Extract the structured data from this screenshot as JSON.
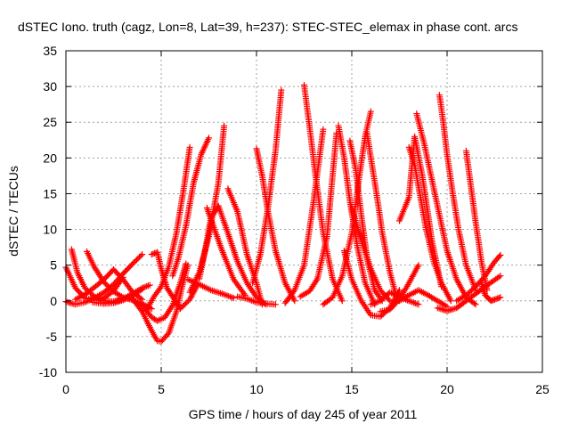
{
  "chart_data": {
    "type": "scatter",
    "title": "dSTEC Iono. truth (cagz, Lon=8, Lat=39, h=237): STEC-STEC_elemax in phase cont. arcs",
    "xlabel": "GPS time / hours of day 245 of year 2011",
    "ylabel": "dSTEC  / TECUs",
    "xlim": [
      0,
      25
    ],
    "ylim": [
      -10,
      35
    ],
    "xticks": [
      0,
      5,
      10,
      15,
      20,
      25
    ],
    "yticks": [
      -10,
      -5,
      0,
      5,
      10,
      15,
      20,
      25,
      30,
      35
    ],
    "grid": true,
    "marker": "+",
    "colors": {
      "series": "#ff0000",
      "grid": "#a0a0a0",
      "axes": "#000000"
    },
    "series": [
      {
        "x": [
          0.0,
          0.5,
          1.0,
          1.5,
          2.0,
          2.5,
          3.0
        ],
        "y": [
          4.7,
          1.8,
          0.4,
          0.1,
          0.4,
          1.4,
          3.3
        ]
      },
      {
        "x": [
          0.0,
          0.5,
          1.0,
          1.5,
          2.0,
          2.5,
          3.0,
          3.5,
          4.0
        ],
        "y": [
          -0.1,
          -0.5,
          -0.2,
          0.4,
          1.2,
          2.3,
          3.8,
          5.2,
          6.5
        ]
      },
      {
        "x": [
          0.3,
          0.6,
          1.0,
          1.5,
          2.0,
          2.5,
          3.0,
          3.5,
          4.0
        ],
        "y": [
          7.2,
          4.0,
          1.8,
          0.6,
          0.0,
          -0.1,
          0.2,
          0.8,
          1.6
        ]
      },
      {
        "x": [
          0.5,
          1.0,
          1.5,
          2.0,
          2.5,
          3.0,
          3.5,
          4.0
        ],
        "y": [
          0.2,
          0.9,
          1.9,
          3.0,
          4.4,
          3.0,
          1.2,
          0.2
        ]
      },
      {
        "x": [
          1.1,
          1.5,
          2.0,
          2.5,
          3.0,
          3.5,
          4.0,
          4.5
        ],
        "y": [
          6.9,
          4.7,
          2.6,
          1.3,
          0.5,
          0.1,
          -0.4,
          -1.1
        ]
      },
      {
        "x": [
          1.4,
          2.0,
          2.5,
          3.0,
          3.5
        ],
        "y": [
          -0.2,
          -0.4,
          -0.3,
          0.1,
          0.7
        ]
      },
      {
        "x": [
          2.0,
          2.5,
          3.0,
          3.5,
          4.0,
          4.4
        ],
        "y": [
          -0.3,
          -0.1,
          0.3,
          1.0,
          1.8,
          2.2
        ]
      },
      {
        "x": [
          3.5,
          4.0,
          4.5,
          4.8,
          5.0,
          5.4,
          5.8,
          6.1,
          6.4
        ],
        "y": [
          0.3,
          -1.5,
          -4.2,
          -5.6,
          -5.7,
          -4.5,
          -1.5,
          2.0,
          5.0
        ]
      },
      {
        "x": [
          3.9,
          4.2,
          4.5,
          4.8,
          5.2,
          5.6,
          6.0,
          6.3
        ],
        "y": [
          -0.3,
          -1.3,
          -2.3,
          -2.8,
          -2.3,
          -0.6,
          2.5,
          5.2
        ]
      },
      {
        "x": [
          4.5,
          4.8,
          5.0,
          5.3,
          5.7,
          6.0,
          6.5,
          6.9
        ],
        "y": [
          6.5,
          6.8,
          4.5,
          1.8,
          0.2,
          -1.1,
          0.2,
          2.2
        ]
      },
      {
        "x": [
          4.2,
          4.6,
          5.0,
          5.4,
          5.8,
          6.2,
          6.5
        ],
        "y": [
          -1.4,
          0.5,
          2.0,
          4.8,
          9.5,
          16.0,
          21.5
        ]
      },
      {
        "x": [
          5.6,
          5.9,
          6.3,
          6.7,
          7.1,
          7.5
        ],
        "y": [
          3.5,
          6.0,
          10.5,
          16.5,
          20.5,
          22.8
        ]
      },
      {
        "x": [
          6.4,
          7.0,
          7.6,
          8.2,
          8.8
        ],
        "y": [
          3.0,
          2.3,
          1.5,
          1.0,
          0.4
        ]
      },
      {
        "x": [
          6.5,
          7.0,
          7.5,
          8.0,
          8.3
        ],
        "y": [
          1.2,
          4.0,
          9.0,
          16.5,
          24.5
        ]
      },
      {
        "x": [
          7.0,
          7.3,
          7.6,
          8.0,
          8.5,
          9.0,
          9.5,
          10.0,
          10.5
        ],
        "y": [
          3.1,
          7.0,
          11.5,
          13.3,
          9.5,
          5.5,
          2.5,
          0.5,
          -0.5
        ]
      },
      {
        "x": [
          7.4,
          7.8,
          8.2,
          8.8,
          9.4
        ],
        "y": [
          13.0,
          10.0,
          7.0,
          3.0,
          0.8
        ]
      },
      {
        "x": [
          8.5,
          9.0,
          9.5,
          10.0,
          10.3
        ],
        "y": [
          15.7,
          12.5,
          6.5,
          2.5,
          -0.5
        ]
      },
      {
        "x": [
          9.0,
          9.5,
          10.0,
          10.5,
          11.0
        ],
        "y": [
          0.6,
          0.3,
          -0.2,
          -0.4,
          -0.5
        ]
      },
      {
        "x": [
          10.0,
          10.3,
          10.6,
          11.0,
          11.5,
          12.0
        ],
        "y": [
          21.3,
          17.5,
          12.5,
          7.0,
          2.5,
          0.0
        ]
      },
      {
        "x": [
          9.8,
          10.2,
          10.6,
          11.0,
          11.3
        ],
        "y": [
          2.5,
          6.5,
          13.0,
          21.0,
          29.5
        ]
      },
      {
        "x": [
          11.5,
          12.0,
          12.5,
          13.0,
          13.5
        ],
        "y": [
          -0.3,
          1.5,
          5.0,
          14.0,
          24.0
        ]
      },
      {
        "x": [
          12.5,
          12.8,
          13.1,
          13.5,
          14.0,
          14.5
        ],
        "y": [
          30.2,
          24.0,
          17.5,
          9.5,
          3.0,
          0.0
        ]
      },
      {
        "x": [
          12.3,
          12.8,
          13.2,
          13.7,
          14.2
        ],
        "y": [
          0.6,
          1.4,
          3.1,
          9.0,
          23.5
        ]
      },
      {
        "x": [
          13.5,
          14.0,
          14.5,
          15.0,
          15.4,
          15.7,
          16.0
        ],
        "y": [
          -0.5,
          0.5,
          3.5,
          9.5,
          17.5,
          23.0,
          26.5
        ]
      },
      {
        "x": [
          14.3,
          14.6,
          14.9,
          15.3,
          15.7,
          16.2
        ],
        "y": [
          24.5,
          20.0,
          14.0,
          7.5,
          2.5,
          -0.5
        ]
      },
      {
        "x": [
          14.9,
          15.2,
          15.5,
          15.8,
          16.2,
          16.6
        ],
        "y": [
          22.4,
          18.5,
          12.0,
          6.0,
          1.5,
          0.0
        ]
      },
      {
        "x": [
          15.0,
          15.5,
          16.0,
          16.5,
          17.0
        ],
        "y": [
          13.0,
          8.5,
          4.5,
          1.5,
          0.0
        ]
      },
      {
        "x": [
          14.6,
          15.0,
          15.5,
          16.0,
          16.5,
          17.0,
          17.5
        ],
        "y": [
          7.0,
          3.0,
          0.0,
          -2.0,
          -2.2,
          -1.0,
          1.5
        ]
      },
      {
        "x": [
          15.8,
          16.0,
          16.3,
          16.6,
          17.0,
          17.3
        ],
        "y": [
          23.5,
          20.0,
          15.0,
          9.5,
          4.0,
          1.0
        ]
      },
      {
        "x": [
          16.5,
          17.0,
          17.5,
          18.0,
          18.5
        ],
        "y": [
          -1.5,
          -1.2,
          0.2,
          2.5,
          5.0
        ]
      },
      {
        "x": [
          17.5,
          18.0,
          18.3,
          18.7,
          19.2,
          19.7
        ],
        "y": [
          11.2,
          14.5,
          23.0,
          17.5,
          8.5,
          2.0
        ]
      },
      {
        "x": [
          18.0,
          18.3,
          18.6,
          18.9,
          19.3,
          19.7,
          20.2
        ],
        "y": [
          21.5,
          19.0,
          14.5,
          10.0,
          5.5,
          2.5,
          0.0
        ]
      },
      {
        "x": [
          18.4,
          18.8,
          19.2,
          19.6,
          20.0,
          20.5,
          21.0,
          21.5
        ],
        "y": [
          26.2,
          22.0,
          17.0,
          12.0,
          7.0,
          3.0,
          0.5,
          -0.5
        ]
      },
      {
        "x": [
          19.6,
          19.8,
          20.0,
          20.3,
          20.6,
          21.0,
          21.5
        ],
        "y": [
          28.8,
          25.0,
          20.5,
          15.0,
          10.0,
          5.0,
          1.5
        ]
      },
      {
        "x": [
          20.5,
          21.0,
          21.5,
          22.0,
          22.5,
          22.8
        ],
        "y": [
          0.0,
          0.8,
          2.0,
          3.5,
          5.5,
          6.4
        ]
      },
      {
        "x": [
          21.0,
          21.2,
          21.5,
          21.8,
          22.1
        ],
        "y": [
          21.0,
          17.0,
          11.0,
          5.5,
          1.5
        ]
      },
      {
        "x": [
          19.5,
          20.0,
          20.5,
          21.0,
          21.5,
          22.0,
          22.8
        ],
        "y": [
          -1.0,
          -1.4,
          -1.0,
          0.0,
          1.0,
          2.0,
          3.5
        ]
      },
      {
        "x": [
          17.5,
          18.0,
          18.5,
          19.0,
          19.5,
          20.0
        ],
        "y": [
          0.0,
          0.8,
          1.5,
          0.8,
          0.0,
          -0.8
        ]
      },
      {
        "x": [
          21.8,
          22.0,
          22.3,
          22.5,
          22.8
        ],
        "y": [
          2.5,
          0.8,
          0.0,
          0.2,
          0.5
        ]
      },
      {
        "x": [
          16.0,
          16.5,
          17.0,
          17.5,
          18.0,
          18.5
        ],
        "y": [
          -0.5,
          0.0,
          1.2,
          0.5,
          0.0,
          -0.5
        ]
      }
    ]
  }
}
